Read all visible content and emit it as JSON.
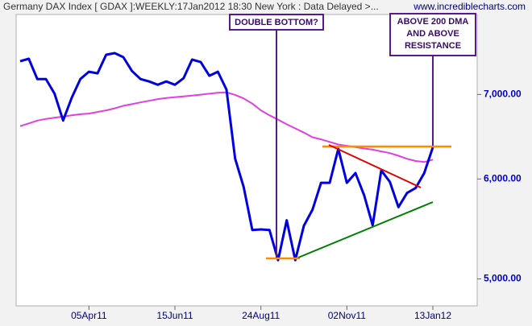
{
  "chart_data": {
    "type": "line",
    "title": "Germany DAX Index [ GDAX ]:WEEKLY:17Jan2012 18:30 New York : Data Delayed >...",
    "watermark": "www.incrediblecharts.com",
    "annotations": [
      {
        "text": [
          "DOUBLE BOTTOM?"
        ]
      },
      {
        "text": [
          "ABOVE 200 DMA",
          "AND ABOVE",
          "RESISTANCE"
        ]
      }
    ],
    "categories": [
      null,
      null,
      null,
      null,
      null,
      null,
      null,
      null,
      "05Apr11",
      null,
      null,
      null,
      null,
      null,
      null,
      null,
      null,
      null,
      "15Jun11",
      null,
      null,
      null,
      null,
      null,
      null,
      null,
      null,
      null,
      "24Aug11",
      null,
      null,
      null,
      null,
      null,
      null,
      null,
      null,
      null,
      "02Nov11",
      null,
      null,
      null,
      null,
      null,
      null,
      null,
      null,
      null,
      "13Jan12"
    ],
    "series": [
      {
        "color": "#0000e0",
        "values": [
          7438,
          7471,
          7200,
          7200,
          7010,
          6676,
          6959,
          7200,
          7297,
          7275,
          7527,
          7549,
          7493,
          7307,
          7200,
          7168,
          7125,
          7168,
          7125,
          7211,
          7460,
          7427,
          7243,
          7297,
          7062,
          6227,
          5913,
          5467,
          5473,
          5467,
          5174,
          5564,
          5174,
          5510,
          5673,
          5958,
          5958,
          6339,
          5958,
          6065,
          5826,
          5514,
          6095,
          5968,
          5700,
          5849,
          5903,
          6065,
          6357
        ]
      },
      {
        "color": "#e040e0",
        "values": [
          6607,
          6640,
          6675,
          6695,
          6710,
          6725,
          6740,
          6752,
          6760,
          6780,
          6800,
          6825,
          6857,
          6878,
          6900,
          6920,
          6942,
          6955,
          6965,
          6975,
          6985,
          6998,
          7010,
          7022,
          7028,
          6995,
          6950,
          6885,
          6800,
          6740,
          6685,
          6630,
          6580,
          6530,
          6475,
          6450,
          6420,
          6390,
          6375,
          6360,
          6343,
          6330,
          6310,
          6290,
          6260,
          6225,
          6200,
          6188,
          6216
        ]
      }
    ],
    "ylim": [
      4760,
      8100
    ],
    "log_y": true,
    "yticks": [
      {
        "value": 5000,
        "label": "5,000.00"
      },
      {
        "value": 6000,
        "label": "6,000.00"
      },
      {
        "value": 7000,
        "label": "7,000.00"
      }
    ]
  }
}
